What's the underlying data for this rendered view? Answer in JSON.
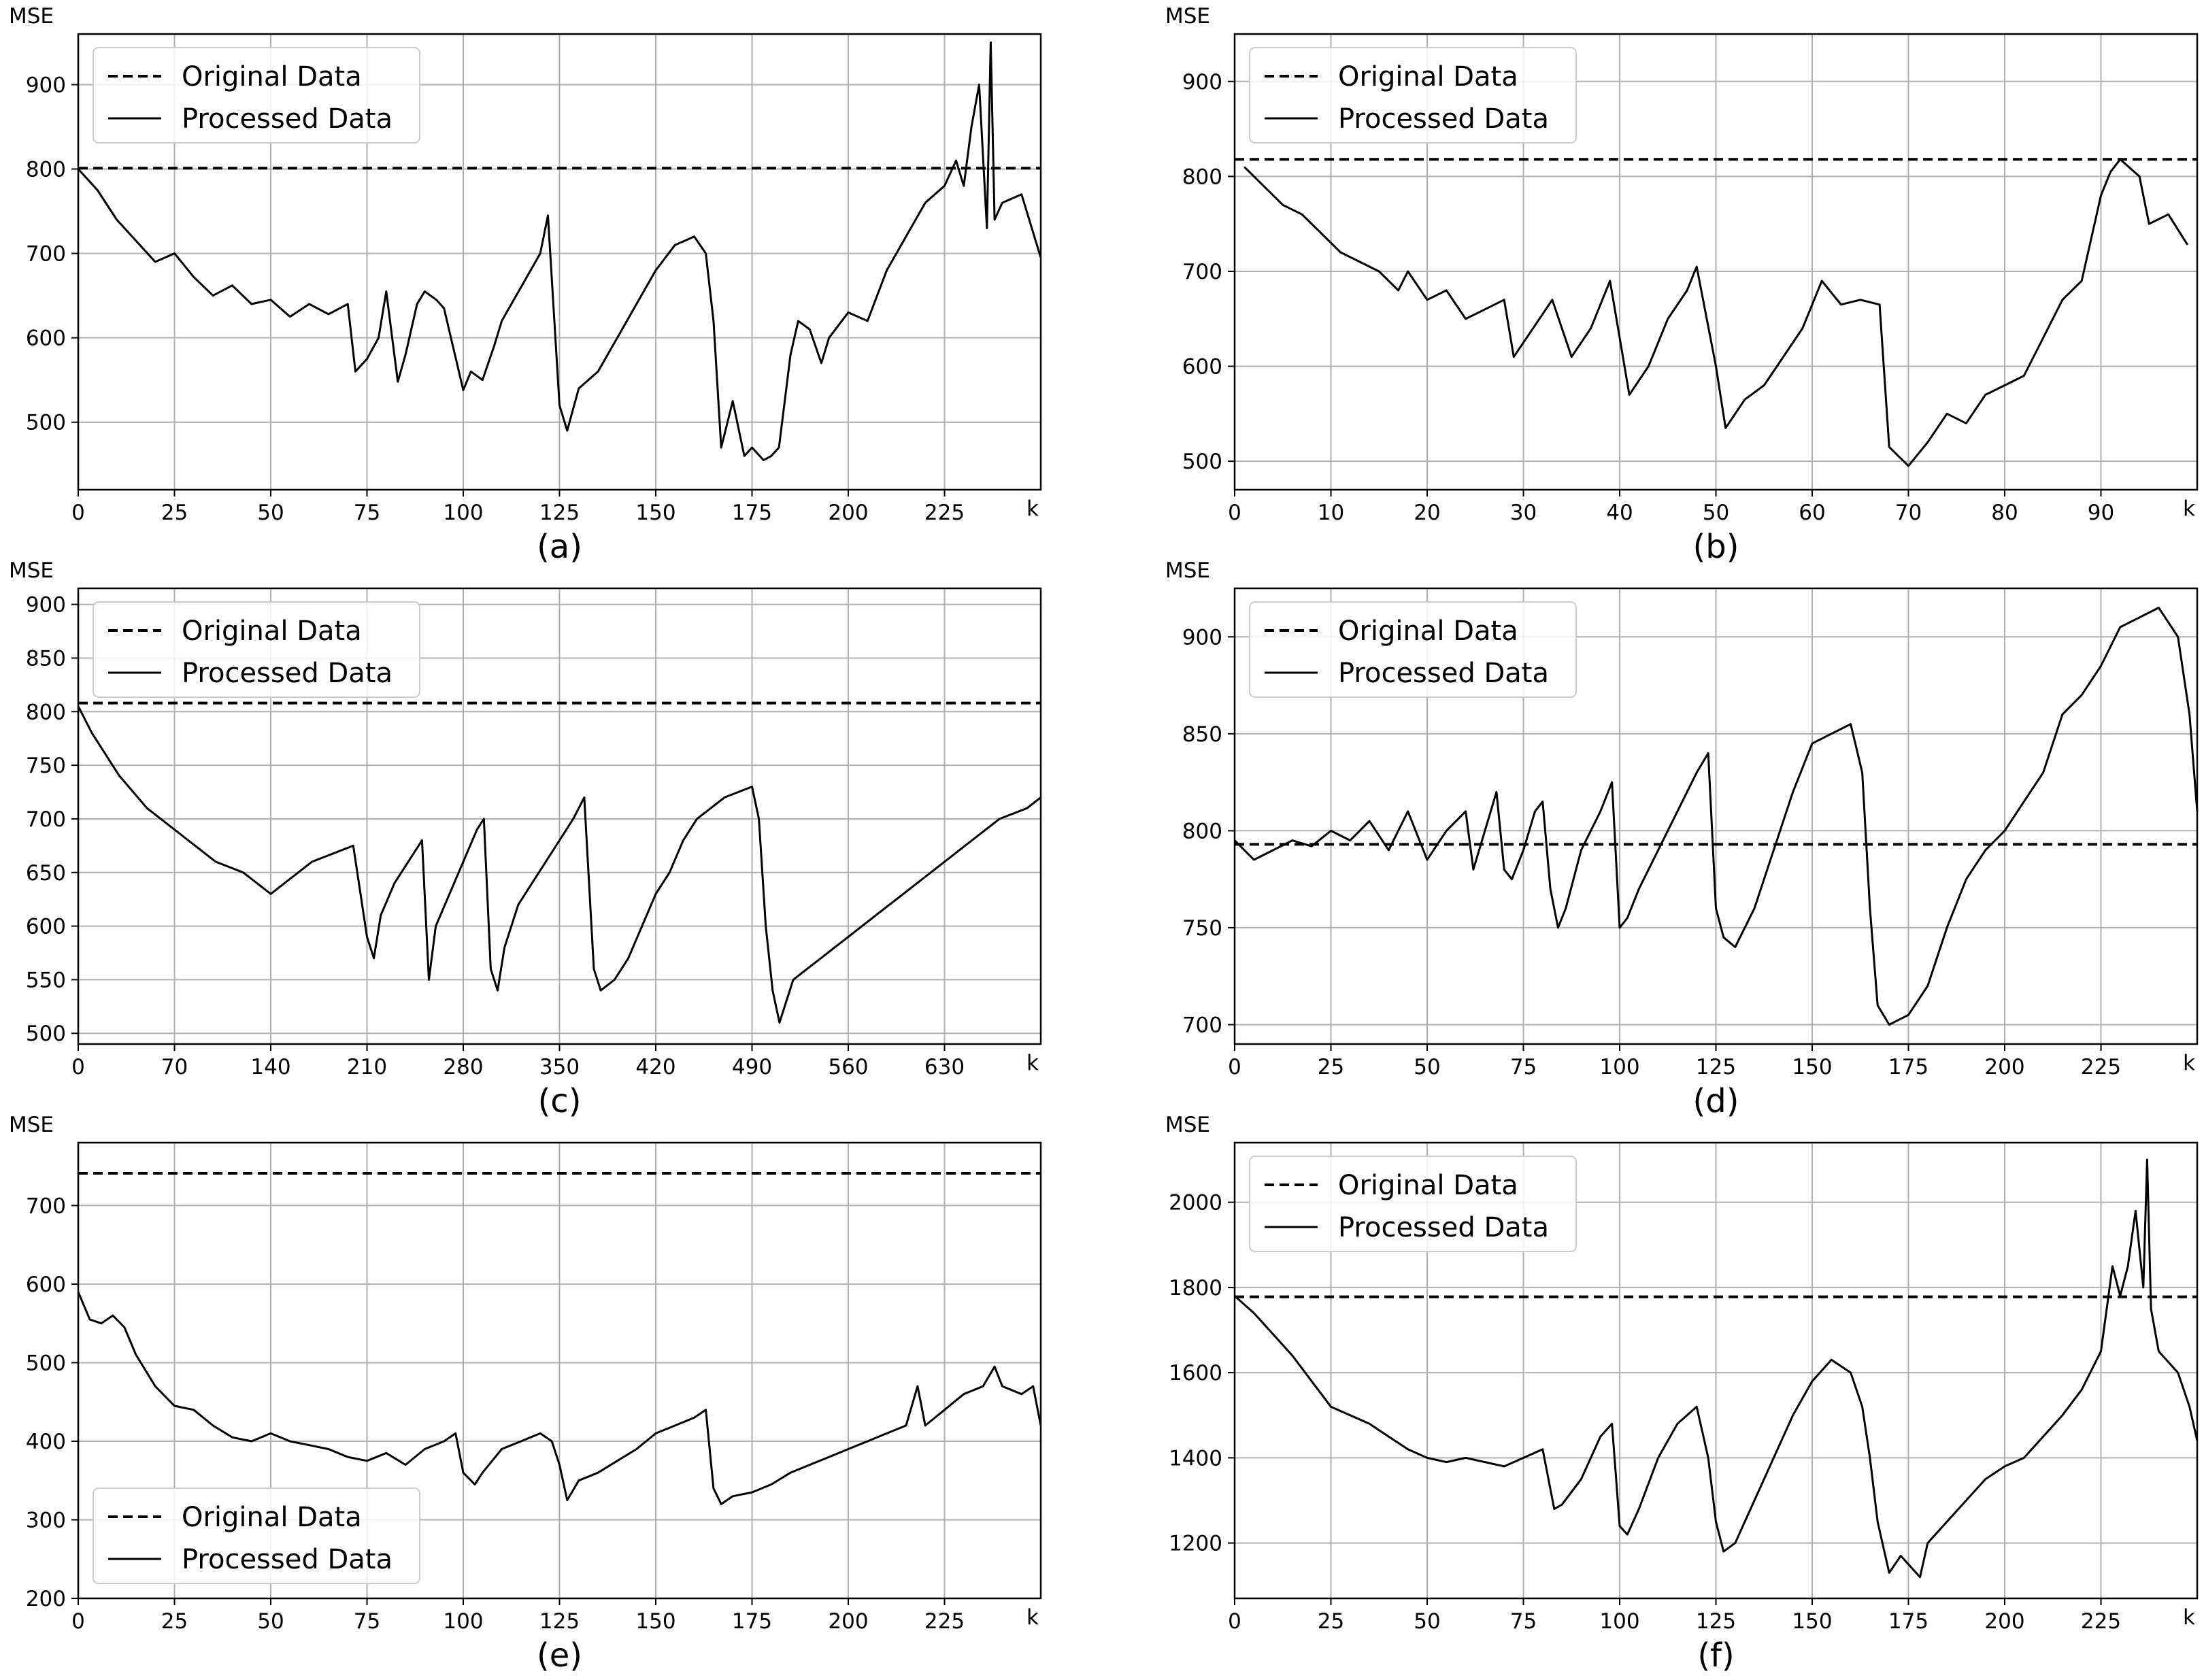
{
  "chart_data": [
    {
      "type": "line",
      "panel": "a",
      "caption": "(a)",
      "xlabel": "k",
      "ylabel": "MSE",
      "xlim": [
        0,
        250
      ],
      "ylim": [
        420,
        960
      ],
      "xticks": [
        0,
        25,
        50,
        75,
        100,
        125,
        150,
        175,
        200,
        225
      ],
      "yticks": [
        500,
        600,
        700,
        800,
        900
      ],
      "legend_position": "top-left",
      "series": [
        {
          "name": "Original Data",
          "style": "dashed",
          "constant": 801
        },
        {
          "name": "Processed Data",
          "style": "solid",
          "x": [
            0,
            5,
            10,
            15,
            20,
            25,
            30,
            35,
            40,
            45,
            50,
            55,
            60,
            65,
            70,
            72,
            75,
            78,
            80,
            83,
            85,
            88,
            90,
            93,
            95,
            100,
            102,
            105,
            108,
            110,
            115,
            120,
            122,
            125,
            127,
            130,
            135,
            140,
            145,
            150,
            155,
            160,
            163,
            165,
            167,
            170,
            173,
            175,
            178,
            180,
            182,
            185,
            187,
            190,
            193,
            195,
            200,
            205,
            210,
            215,
            220,
            225,
            228,
            230,
            232,
            234,
            236,
            237,
            238,
            240,
            245,
            250
          ],
          "values": [
            800,
            775,
            740,
            715,
            690,
            700,
            672,
            650,
            662,
            640,
            645,
            625,
            640,
            628,
            640,
            560,
            575,
            600,
            655,
            548,
            580,
            640,
            655,
            645,
            635,
            538,
            560,
            550,
            590,
            620,
            660,
            700,
            745,
            520,
            490,
            540,
            560,
            600,
            640,
            680,
            710,
            720,
            700,
            620,
            470,
            525,
            460,
            470,
            455,
            460,
            470,
            580,
            620,
            610,
            570,
            600,
            630,
            620,
            680,
            720,
            760,
            780,
            810,
            780,
            850,
            900,
            730,
            950,
            740,
            760,
            770,
            695
          ]
        }
      ]
    },
    {
      "type": "line",
      "panel": "b",
      "caption": "(b)",
      "xlabel": "k",
      "ylabel": "MSE",
      "xlim": [
        0,
        100
      ],
      "ylim": [
        470,
        950
      ],
      "xticks": [
        0,
        10,
        20,
        30,
        40,
        50,
        60,
        70,
        80,
        90
      ],
      "yticks": [
        500,
        600,
        700,
        800,
        900
      ],
      "legend_position": "top-left",
      "series": [
        {
          "name": "Original Data",
          "style": "dashed",
          "constant": 818
        },
        {
          "name": "Processed Data",
          "style": "solid",
          "x": [
            1,
            3,
            5,
            7,
            9,
            11,
            13,
            15,
            17,
            18,
            20,
            22,
            24,
            26,
            28,
            29,
            31,
            33,
            35,
            37,
            39,
            41,
            43,
            45,
            47,
            48,
            50,
            51,
            53,
            55,
            57,
            59,
            61,
            63,
            65,
            67,
            68,
            70,
            72,
            74,
            76,
            78,
            80,
            82,
            84,
            86,
            88,
            90,
            91,
            92,
            94,
            95,
            97,
            99
          ],
          "values": [
            810,
            790,
            770,
            760,
            740,
            720,
            710,
            700,
            680,
            700,
            670,
            680,
            650,
            660,
            670,
            610,
            640,
            670,
            610,
            640,
            690,
            570,
            600,
            650,
            680,
            705,
            600,
            535,
            565,
            580,
            610,
            640,
            690,
            665,
            670,
            665,
            515,
            495,
            520,
            550,
            540,
            570,
            580,
            590,
            630,
            670,
            690,
            780,
            805,
            818,
            800,
            750,
            760,
            728
          ]
        }
      ]
    },
    {
      "type": "line",
      "panel": "c",
      "caption": "(c)",
      "xlabel": "k",
      "ylabel": "MSE",
      "xlim": [
        0,
        700
      ],
      "ylim": [
        490,
        915
      ],
      "xticks": [
        0,
        70,
        140,
        210,
        280,
        350,
        420,
        490,
        560,
        630
      ],
      "yticks": [
        500,
        550,
        600,
        650,
        700,
        750,
        800,
        850,
        900
      ],
      "legend_position": "top-left",
      "series": [
        {
          "name": "Original Data",
          "style": "dashed",
          "constant": 808
        },
        {
          "name": "Processed Data",
          "style": "solid",
          "x": [
            0,
            10,
            20,
            30,
            40,
            50,
            60,
            70,
            80,
            90,
            100,
            110,
            120,
            130,
            140,
            150,
            160,
            170,
            180,
            190,
            200,
            210,
            215,
            220,
            230,
            240,
            250,
            255,
            260,
            270,
            280,
            290,
            295,
            300,
            305,
            310,
            320,
            330,
            340,
            350,
            360,
            368,
            375,
            380,
            390,
            400,
            410,
            420,
            430,
            440,
            450,
            460,
            470,
            480,
            490,
            495,
            500,
            505,
            510,
            515,
            520,
            530,
            540,
            550,
            560,
            570,
            580,
            590,
            600,
            610,
            620,
            630,
            640,
            650,
            660,
            670,
            680,
            690,
            700
          ],
          "values": [
            805,
            780,
            760,
            740,
            725,
            710,
            700,
            690,
            680,
            670,
            660,
            655,
            650,
            640,
            630,
            640,
            650,
            660,
            665,
            670,
            675,
            590,
            570,
            610,
            640,
            660,
            680,
            550,
            600,
            630,
            660,
            690,
            700,
            560,
            540,
            580,
            620,
            640,
            660,
            680,
            700,
            720,
            560,
            540,
            550,
            570,
            600,
            630,
            650,
            680,
            700,
            710,
            720,
            725,
            730,
            700,
            600,
            540,
            510,
            530,
            550,
            560,
            570,
            580,
            590,
            600,
            610,
            620,
            630,
            640,
            650,
            660,
            670,
            680,
            690,
            700,
            705,
            710,
            720
          ]
        }
      ]
    },
    {
      "type": "line",
      "panel": "d",
      "caption": "(d)",
      "xlabel": "k",
      "ylabel": "MSE",
      "xlim": [
        0,
        250
      ],
      "ylim": [
        690,
        925
      ],
      "xticks": [
        0,
        25,
        50,
        75,
        100,
        125,
        150,
        175,
        200,
        225
      ],
      "yticks": [
        700,
        750,
        800,
        850,
        900
      ],
      "legend_position": "top-left",
      "series": [
        {
          "name": "Original Data",
          "style": "dashed",
          "constant": 793
        },
        {
          "name": "Processed Data",
          "style": "solid",
          "x": [
            0,
            5,
            10,
            15,
            20,
            25,
            30,
            35,
            40,
            45,
            50,
            55,
            60,
            62,
            65,
            68,
            70,
            72,
            75,
            78,
            80,
            82,
            84,
            86,
            90,
            95,
            98,
            100,
            102,
            105,
            110,
            115,
            120,
            123,
            125,
            127,
            130,
            135,
            140,
            145,
            150,
            155,
            160,
            163,
            165,
            167,
            170,
            175,
            180,
            185,
            190,
            195,
            200,
            205,
            210,
            215,
            220,
            225,
            230,
            235,
            240,
            245,
            248,
            250
          ],
          "values": [
            795,
            785,
            790,
            795,
            792,
            800,
            795,
            805,
            790,
            810,
            785,
            800,
            810,
            780,
            800,
            820,
            780,
            775,
            790,
            810,
            815,
            770,
            750,
            760,
            790,
            810,
            825,
            750,
            755,
            770,
            790,
            810,
            830,
            840,
            760,
            745,
            740,
            760,
            790,
            820,
            845,
            850,
            855,
            830,
            760,
            710,
            700,
            705,
            720,
            750,
            775,
            790,
            800,
            815,
            830,
            860,
            870,
            885,
            905,
            910,
            915,
            900,
            860,
            810
          ]
        }
      ]
    },
    {
      "type": "line",
      "panel": "e",
      "caption": "(e)",
      "xlabel": "k",
      "ylabel": "MSE",
      "xlim": [
        0,
        250
      ],
      "ylim": [
        200,
        780
      ],
      "xticks": [
        0,
        25,
        50,
        75,
        100,
        125,
        150,
        175,
        200,
        225
      ],
      "yticks": [
        200,
        300,
        400,
        500,
        600,
        700
      ],
      "legend_position": "bottom-left",
      "series": [
        {
          "name": "Original Data",
          "style": "dashed",
          "constant": 741
        },
        {
          "name": "Processed Data",
          "style": "solid",
          "x": [
            0,
            3,
            6,
            9,
            12,
            15,
            20,
            25,
            30,
            35,
            40,
            45,
            50,
            55,
            60,
            65,
            70,
            75,
            80,
            85,
            90,
            95,
            98,
            100,
            103,
            105,
            110,
            115,
            120,
            123,
            125,
            127,
            130,
            135,
            140,
            145,
            150,
            155,
            160,
            163,
            165,
            167,
            170,
            175,
            180,
            185,
            190,
            195,
            200,
            205,
            210,
            215,
            218,
            220,
            225,
            230,
            235,
            238,
            240,
            245,
            248,
            250
          ],
          "values": [
            590,
            555,
            550,
            560,
            545,
            510,
            470,
            445,
            440,
            420,
            405,
            400,
            410,
            400,
            395,
            390,
            380,
            375,
            385,
            370,
            390,
            400,
            410,
            360,
            345,
            360,
            390,
            400,
            410,
            400,
            370,
            325,
            350,
            360,
            375,
            390,
            410,
            420,
            430,
            440,
            340,
            320,
            330,
            335,
            345,
            360,
            370,
            380,
            390,
            400,
            410,
            420,
            470,
            420,
            440,
            460,
            470,
            495,
            470,
            460,
            470,
            420
          ]
        }
      ]
    },
    {
      "type": "line",
      "panel": "f",
      "caption": "(f)",
      "xlabel": "k",
      "ylabel": "MSE",
      "xlim": [
        0,
        250
      ],
      "ylim": [
        1070,
        2140
      ],
      "xticks": [
        0,
        25,
        50,
        75,
        100,
        125,
        150,
        175,
        200,
        225
      ],
      "yticks": [
        1200,
        1400,
        1600,
        1800,
        2000
      ],
      "legend_position": "top-left",
      "series": [
        {
          "name": "Original Data",
          "style": "dashed",
          "constant": 1778
        },
        {
          "name": "Processed Data",
          "style": "solid",
          "x": [
            0,
            5,
            10,
            15,
            20,
            25,
            30,
            35,
            40,
            45,
            50,
            55,
            60,
            65,
            70,
            75,
            80,
            83,
            85,
            90,
            95,
            98,
            100,
            102,
            105,
            110,
            115,
            120,
            123,
            125,
            127,
            130,
            135,
            140,
            145,
            150,
            155,
            160,
            163,
            165,
            167,
            170,
            173,
            175,
            178,
            180,
            185,
            190,
            195,
            200,
            205,
            210,
            215,
            220,
            225,
            228,
            230,
            232,
            234,
            236,
            237,
            238,
            240,
            245,
            248,
            250
          ],
          "values": [
            1780,
            1740,
            1690,
            1640,
            1580,
            1520,
            1500,
            1480,
            1450,
            1420,
            1400,
            1390,
            1400,
            1390,
            1380,
            1400,
            1420,
            1280,
            1290,
            1350,
            1450,
            1480,
            1240,
            1220,
            1280,
            1400,
            1480,
            1520,
            1400,
            1250,
            1180,
            1200,
            1300,
            1400,
            1500,
            1580,
            1630,
            1600,
            1520,
            1400,
            1250,
            1130,
            1170,
            1150,
            1120,
            1200,
            1250,
            1300,
            1350,
            1380,
            1400,
            1450,
            1500,
            1560,
            1650,
            1850,
            1780,
            1850,
            1980,
            1800,
            2100,
            1750,
            1650,
            1600,
            1520,
            1440
          ]
        }
      ]
    }
  ]
}
